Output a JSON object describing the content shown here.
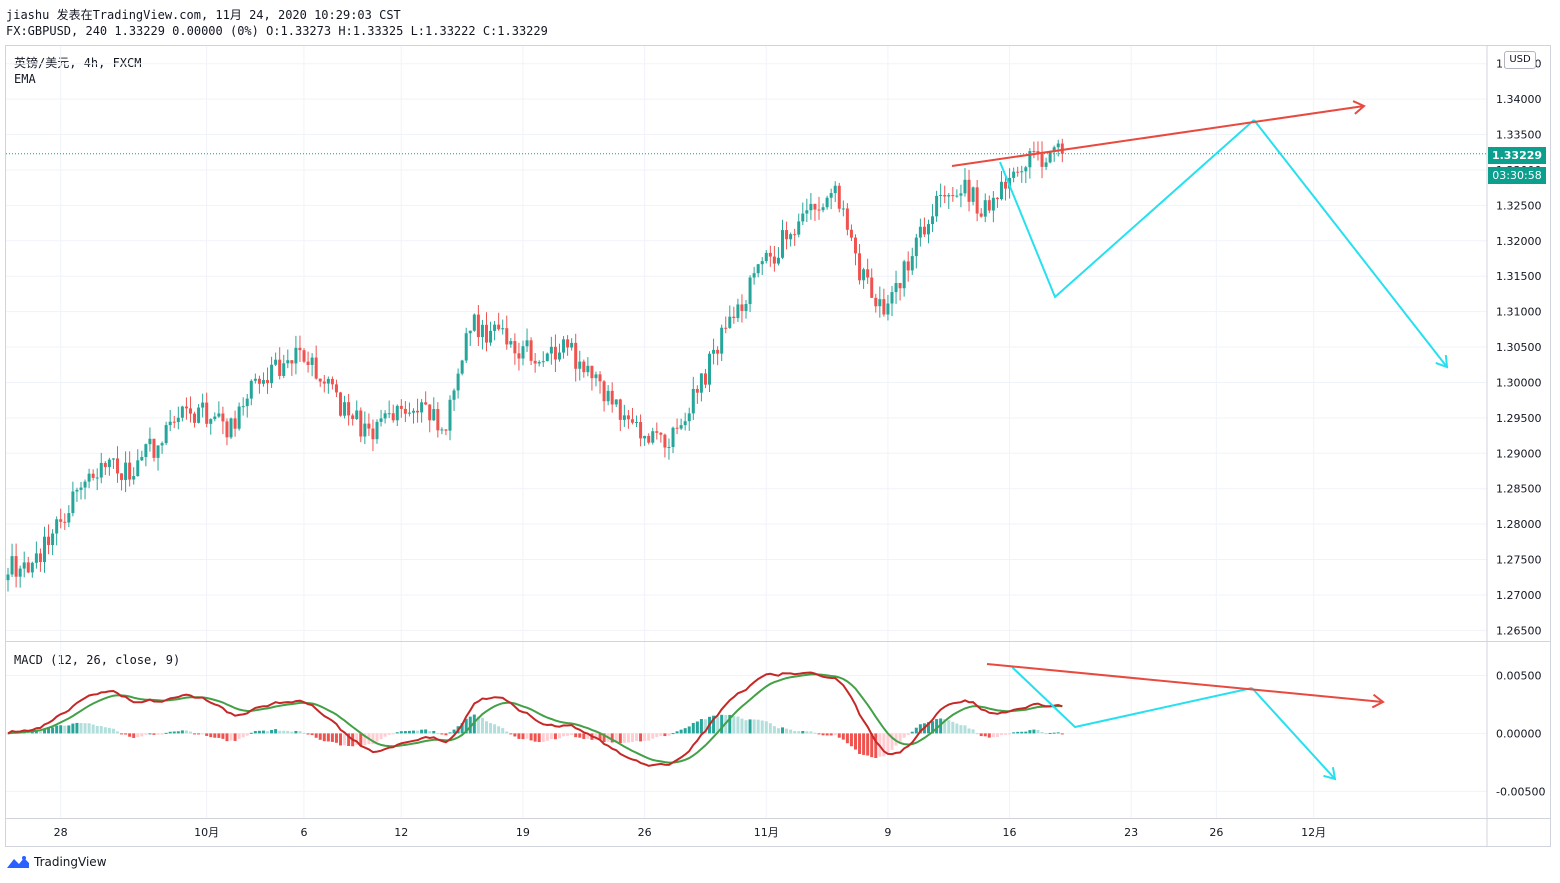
{
  "header": {
    "line1": "jiashu 发表在TradingView.com, 11月 24, 2020 10:29:03 CST",
    "line2": "FX:GBPUSD, 240 1.33229 0.00000 (0%) O:1.33273 H:1.33325 L:1.33222 C:1.33229"
  },
  "legend": {
    "symbol": "英镑/美元, 4h, FXCM",
    "indicator": "EMA",
    "macd": "MACD (12, 26, close, 9)"
  },
  "price_scale": {
    "currency": "USD",
    "last_price": "1.33229",
    "countdown": "03:30:58"
  },
  "branding": {
    "logo_text": "TradingView"
  },
  "colors": {
    "up": "#26a69a",
    "down": "#ef5350",
    "hist_up_strong": "#26a69a",
    "hist_up_weak": "#b2dfdb",
    "hist_down_strong": "#ef5350",
    "hist_down_weak": "#ffcdd2",
    "macd_line": "#c62828",
    "signal_line": "#43a047",
    "drawing_red": "#e84a3f",
    "drawing_cyan": "#26e0f0",
    "price_tag": "#0c9f8e"
  },
  "chart_data": [
    {
      "type": "candlestick",
      "title": "英镑/美元, 4h, FXCM",
      "y_ticks": [
        "1.34500",
        "1.34000",
        "1.33500",
        "1.33000",
        "1.32500",
        "1.32000",
        "1.31500",
        "1.31000",
        "1.30500",
        "1.30000",
        "1.29500",
        "1.29000",
        "1.28500",
        "1.28000",
        "1.27500",
        "1.27000",
        "1.26500"
      ],
      "x_ticks": [
        "28",
        "10月",
        "6",
        "12",
        "19",
        "26",
        "11月",
        "9",
        "16",
        "23",
        "26",
        "12月"
      ],
      "ylim": [
        1.2635,
        1.3475
      ],
      "last_close": 1.33229,
      "grid": true,
      "waypoints": [
        [
          "2020-09-24",
          1.2745
        ],
        [
          "2020-09-25",
          1.2735
        ],
        [
          "2020-09-28",
          1.28
        ],
        [
          "2020-09-29",
          1.285
        ],
        [
          "2020-09-30",
          1.288
        ],
        [
          "2020-10-01",
          1.287
        ],
        [
          "2020-10-02",
          1.291
        ],
        [
          "2020-10-05",
          1.295
        ],
        [
          "2020-10-06",
          1.296
        ],
        [
          "2020-10-07",
          1.293
        ],
        [
          "2020-10-08",
          1.299
        ],
        [
          "2020-10-09",
          1.302
        ],
        [
          "2020-10-12",
          1.304
        ],
        [
          "2020-10-13",
          1.3
        ],
        [
          "2020-10-14",
          1.295
        ],
        [
          "2020-10-15",
          1.293
        ],
        [
          "2020-10-16",
          1.295
        ],
        [
          "2020-10-19",
          1.296
        ],
        [
          "2020-10-20",
          1.294
        ],
        [
          "2020-10-21",
          1.308
        ],
        [
          "2020-10-22",
          1.307
        ],
        [
          "2020-10-23",
          1.305
        ],
        [
          "2020-10-26",
          1.303
        ],
        [
          "2020-10-27",
          1.305
        ],
        [
          "2020-10-28",
          1.301
        ],
        [
          "2020-10-29",
          1.296
        ],
        [
          "2020-10-30",
          1.293
        ],
        [
          "2020-11-02",
          1.291
        ],
        [
          "2020-11-03",
          1.296
        ],
        [
          "2020-11-04",
          1.304
        ],
        [
          "2020-11-05",
          1.311
        ],
        [
          "2020-11-06",
          1.316
        ],
        [
          "2020-11-09",
          1.321
        ],
        [
          "2020-11-10",
          1.3255
        ],
        [
          "2020-11-11",
          1.327
        ],
        [
          "2020-11-12",
          1.315
        ],
        [
          "2020-11-13",
          1.311
        ],
        [
          "2020-11-16",
          1.317
        ],
        [
          "2020-11-17",
          1.325
        ],
        [
          "2020-11-18",
          1.328
        ],
        [
          "2020-11-19",
          1.325
        ],
        [
          "2020-11-20",
          1.327
        ],
        [
          "2020-11-23",
          1.332
        ],
        [
          "2020-11-24",
          1.3323
        ]
      ]
    },
    {
      "type": "line",
      "title": "MACD (12, 26, close, 9)",
      "y_ticks": [
        "0.00500",
        "0.00000",
        "-0.00500"
      ],
      "ylim": [
        -0.0073,
        0.0078
      ],
      "series": [
        {
          "name": "MACD",
          "values_from": "close"
        },
        {
          "name": "Signal",
          "values_from": "MACD"
        },
        {
          "name": "Histogram",
          "values_from": "MACD-Signal"
        }
      ]
    }
  ]
}
